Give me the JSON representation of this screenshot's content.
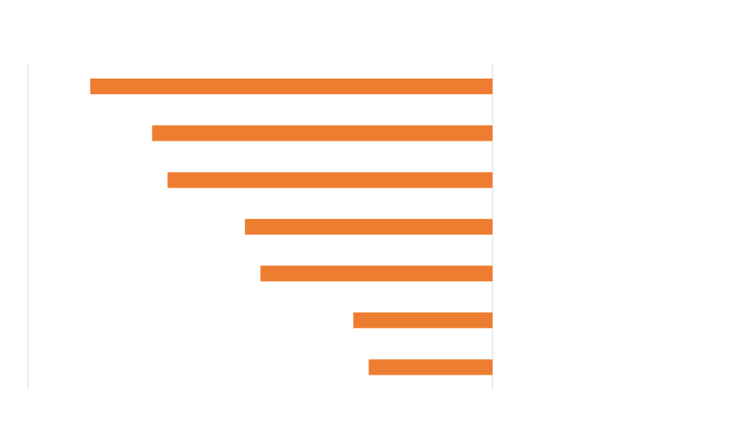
{
  "chart_data": {
    "type": "bar",
    "orientation": "horizontal",
    "categories": [
      null,
      null,
      null,
      null,
      null,
      null,
      null
    ],
    "values": [
      -5.2,
      -4.4,
      -4.2,
      -3.2,
      -3.0,
      -1.8,
      -1.6
    ],
    "color": "#ed7d31",
    "xlim": [
      -6,
      0
    ],
    "xticks": [
      -6,
      -5,
      -4,
      -3,
      -2,
      -1,
      0
    ],
    "grid": true,
    "tick_labels": false
  }
}
